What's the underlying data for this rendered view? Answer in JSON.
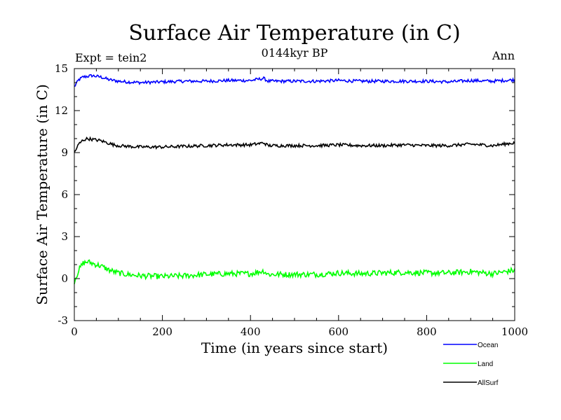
{
  "chart_data": {
    "type": "line",
    "title": "Surface Air Temperature (in C)",
    "subtitle": "0144kyr BP",
    "annotation_left": "Expt = tein2",
    "annotation_right": "Ann",
    "xlabel": "Time (in years since start)",
    "ylabel": "Surface Air Temperature (in C)",
    "xlim": [
      0,
      1000
    ],
    "ylim": [
      -3,
      15
    ],
    "xticks": [
      0,
      200,
      400,
      600,
      800,
      1000
    ],
    "xtick_labels": [
      "0",
      "200",
      "400",
      "600",
      "800",
      "1000"
    ],
    "yticks": [
      -3,
      0,
      3,
      6,
      9,
      12,
      15
    ],
    "ytick_labels": [
      "-3",
      "0",
      "3",
      "6",
      "9",
      "12",
      "15"
    ],
    "legend_position": "bottom-right, below plot",
    "x": [
      0,
      10,
      20,
      30,
      40,
      50,
      60,
      70,
      80,
      90,
      100,
      120,
      150,
      200,
      250,
      300,
      350,
      400,
      430,
      440,
      500,
      550,
      600,
      650,
      700,
      750,
      800,
      850,
      900,
      950,
      1000
    ],
    "series": [
      {
        "name": "Ocean",
        "color": "#0000ff",
        "values": [
          13.7,
          14.2,
          14.4,
          14.45,
          14.5,
          14.45,
          14.4,
          14.3,
          14.2,
          14.15,
          14.1,
          14.05,
          14.0,
          14.05,
          14.1,
          14.1,
          14.15,
          14.15,
          14.3,
          14.1,
          14.1,
          14.1,
          14.15,
          14.1,
          14.1,
          14.1,
          14.1,
          14.05,
          14.15,
          14.1,
          14.2
        ]
      },
      {
        "name": "Land",
        "color": "#00ff00",
        "values": [
          -0.2,
          0.6,
          1.1,
          1.2,
          1.1,
          1.0,
          0.9,
          0.75,
          0.6,
          0.5,
          0.4,
          0.3,
          0.2,
          0.15,
          0.2,
          0.3,
          0.35,
          0.35,
          0.55,
          0.3,
          0.3,
          0.3,
          0.4,
          0.35,
          0.4,
          0.45,
          0.4,
          0.4,
          0.5,
          0.35,
          0.6
        ]
      },
      {
        "name": "AllSurf",
        "color": "#000000",
        "values": [
          9.0,
          9.6,
          9.9,
          10.0,
          9.95,
          9.9,
          9.85,
          9.75,
          9.65,
          9.55,
          9.5,
          9.45,
          9.4,
          9.4,
          9.45,
          9.5,
          9.55,
          9.55,
          9.7,
          9.5,
          9.5,
          9.5,
          9.55,
          9.5,
          9.5,
          9.55,
          9.5,
          9.5,
          9.6,
          9.5,
          9.7
        ]
      }
    ]
  }
}
